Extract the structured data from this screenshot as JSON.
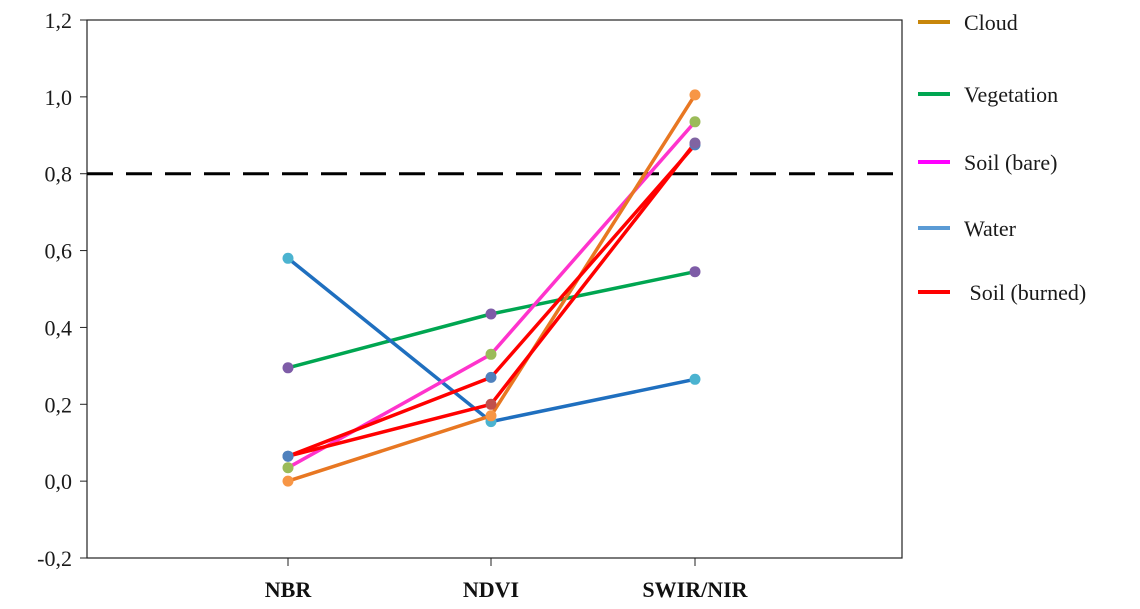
{
  "chart_data": {
    "type": "line",
    "categories": [
      "NBR",
      "NDVI",
      "SWIR/NIR"
    ],
    "ylim": [
      -0.2,
      1.2
    ],
    "yticks": [
      -0.2,
      0.0,
      0.2,
      0.4,
      0.6,
      0.8,
      1.0,
      1.2
    ],
    "ytick_labels": [
      "-0,2",
      "0,0",
      "0,2",
      "0,4",
      "0,6",
      "0,8",
      "1,0",
      "1,2"
    ],
    "threshold": {
      "value": 0.8,
      "style": "dashed",
      "color": "#000000"
    },
    "grid": false,
    "legend_position": "right",
    "legend": [
      {
        "name": "Cloud",
        "color": "#c8860a"
      },
      {
        "name": "Vegetation",
        "color": "#00a651"
      },
      {
        "name": "Soil (bare)",
        "color": "#ff00ff"
      },
      {
        "name": "Water",
        "color": "#5b9bd5"
      },
      {
        "name": " Soil (burned)",
        "color": "#ff0000"
      }
    ],
    "series": [
      {
        "line_color": "#00a651",
        "marker_colors": [
          "#7e5ca7",
          "#7e5ca7",
          "#7e5ca7"
        ],
        "values": [
          0.295,
          0.435,
          0.545
        ]
      },
      {
        "line_color": "#1f6fbf",
        "marker_colors": [
          "#4bb3d0",
          "#4bb3d0",
          "#4bb3d0"
        ],
        "values": [
          0.58,
          0.155,
          0.265
        ]
      },
      {
        "line_color": "#ff33cc",
        "marker_colors": [
          "#9bbb59",
          "#9bbb59",
          "#9bbb59"
        ],
        "values": [
          0.035,
          0.33,
          0.935
        ]
      },
      {
        "line_color": "#e87722",
        "marker_colors": [
          "#f79646",
          "#f79646",
          "#f79646"
        ],
        "values": [
          0.0,
          0.17,
          1.005
        ]
      },
      {
        "line_color": "#ff0000",
        "marker_colors": [
          "#4f81bd",
          "#4f81bd",
          "#4f81bd"
        ],
        "values": [
          0.065,
          0.27,
          0.875
        ]
      },
      {
        "line_color": "#ff0000",
        "marker_colors": [
          "#4f81bd",
          "#c0504d",
          "#8064a2"
        ],
        "values": [
          0.065,
          0.2,
          0.88
        ]
      }
    ]
  }
}
